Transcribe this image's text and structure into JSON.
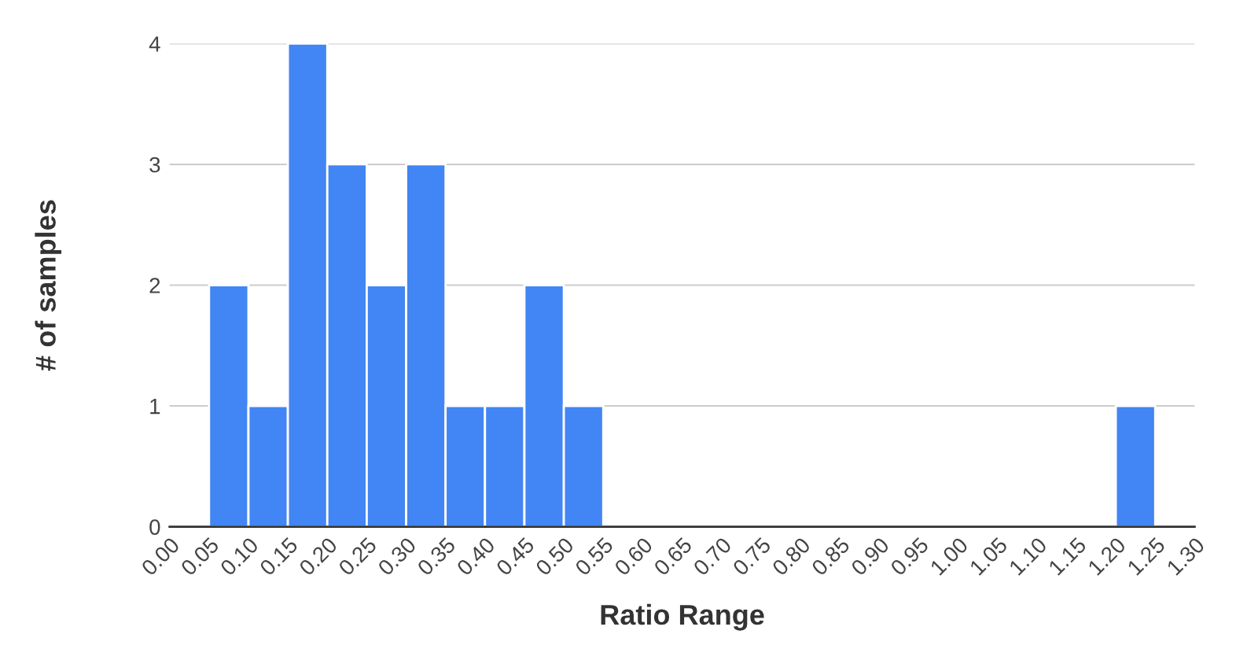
{
  "chart_data": {
    "type": "histogram",
    "xlabel": "Ratio Range",
    "ylabel": "# of samples",
    "bins": [
      0.0,
      0.05,
      0.1,
      0.15,
      0.2,
      0.25,
      0.3,
      0.35,
      0.4,
      0.45,
      0.5,
      0.55,
      0.6,
      0.65,
      0.7,
      0.75,
      0.8,
      0.85,
      0.9,
      0.95,
      1.0,
      1.05,
      1.1,
      1.15,
      1.2,
      1.25,
      1.3
    ],
    "values": [
      0,
      2,
      1,
      4,
      3,
      2,
      3,
      1,
      1,
      2,
      1,
      0,
      0,
      0,
      0,
      0,
      0,
      0,
      0,
      0,
      0,
      0,
      0,
      0,
      1,
      0
    ],
    "color": "#4285f4",
    "xlim": [
      0,
      1.3
    ],
    "xticks": [
      {
        "value": 0.0,
        "label": "0.00"
      },
      {
        "value": 0.05,
        "label": "0.05"
      },
      {
        "value": 0.1,
        "label": "0.10"
      },
      {
        "value": 0.15,
        "label": "0.15"
      },
      {
        "value": 0.2,
        "label": "0.20"
      },
      {
        "value": 0.25,
        "label": "0.25"
      },
      {
        "value": 0.3,
        "label": "0.30"
      },
      {
        "value": 0.35,
        "label": "0.35"
      },
      {
        "value": 0.4,
        "label": "0.40"
      },
      {
        "value": 0.45,
        "label": "0.45"
      },
      {
        "value": 0.5,
        "label": "0.50"
      },
      {
        "value": 0.55,
        "label": "0.55"
      },
      {
        "value": 0.6,
        "label": "0.60"
      },
      {
        "value": 0.65,
        "label": "0.65"
      },
      {
        "value": 0.7,
        "label": "0.70"
      },
      {
        "value": 0.75,
        "label": "0.75"
      },
      {
        "value": 0.8,
        "label": "0.80"
      },
      {
        "value": 0.85,
        "label": "0.85"
      },
      {
        "value": 0.9,
        "label": "0.90"
      },
      {
        "value": 0.95,
        "label": "0.95"
      },
      {
        "value": 1.0,
        "label": "1.00"
      },
      {
        "value": 1.05,
        "label": "1.05"
      },
      {
        "value": 1.1,
        "label": "1.10"
      },
      {
        "value": 1.15,
        "label": "1.15"
      },
      {
        "value": 1.2,
        "label": "1.20"
      },
      {
        "value": 1.25,
        "label": "1.25"
      },
      {
        "value": 1.3,
        "label": "1.30"
      }
    ],
    "ylim": [
      0,
      4
    ],
    "yticks": [
      0,
      1,
      2,
      3,
      4
    ],
    "grid": "y"
  }
}
